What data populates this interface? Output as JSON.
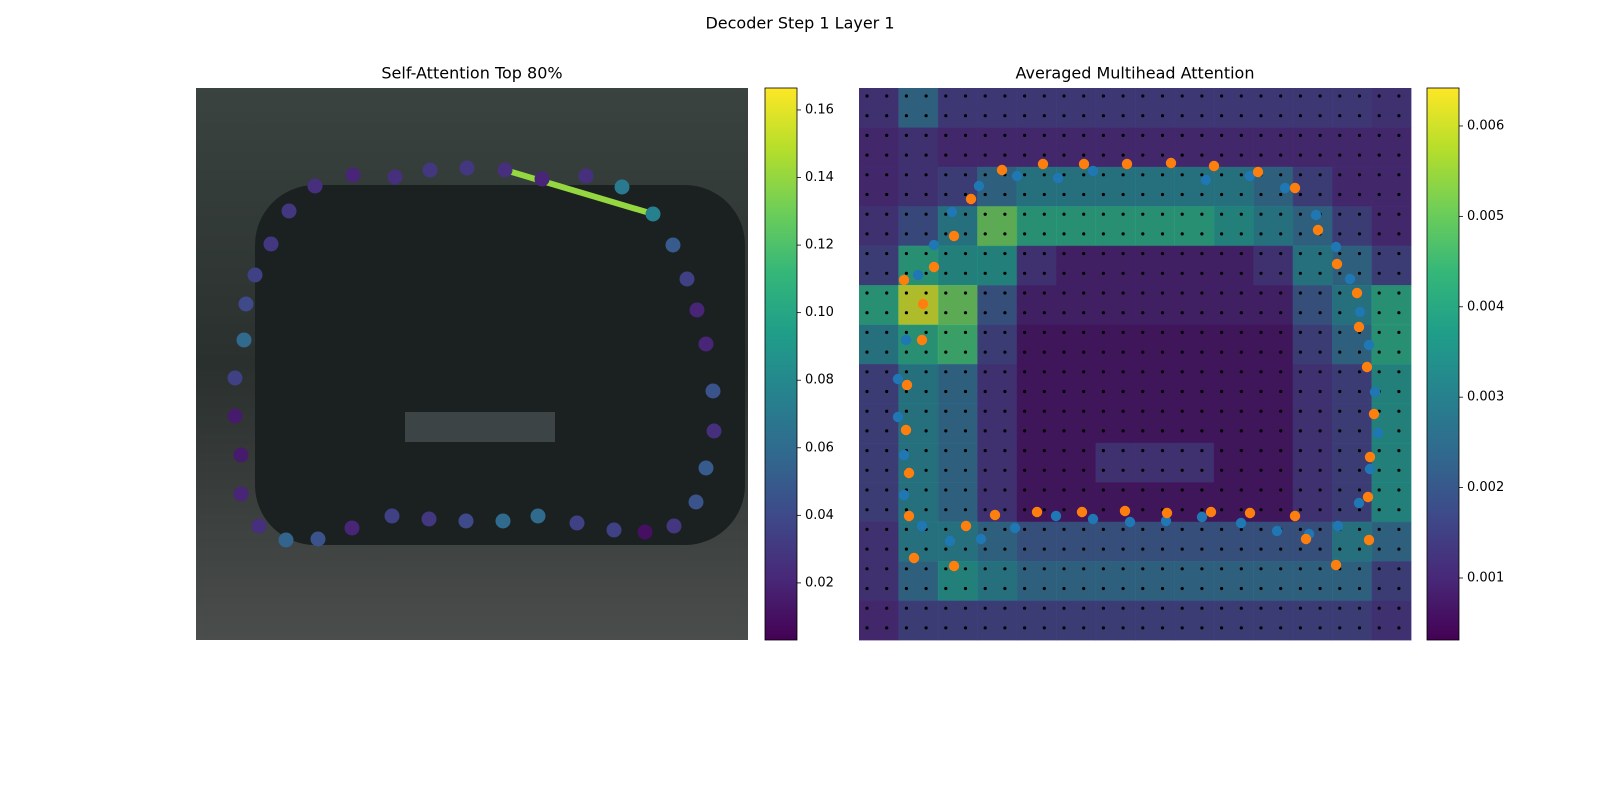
{
  "suptitle": "Decoder Step 1 Layer 1",
  "chart_data": [
    {
      "type": "scatter",
      "title": "Self-Attention Top 80%",
      "xlim": [
        0,
        552
      ],
      "ylim": [
        552,
        0
      ],
      "x": [
        157,
        199,
        234,
        271,
        309,
        346,
        390,
        426,
        457,
        477,
        491,
        501,
        510,
        517,
        518,
        510,
        500,
        478,
        449,
        418,
        381,
        342,
        307,
        270,
        233,
        196,
        156,
        122,
        90,
        63,
        45,
        45,
        39,
        39,
        48,
        50,
        59,
        75,
        93,
        119
      ],
      "y": [
        87,
        89,
        82,
        80,
        82,
        91,
        88,
        99,
        126,
        157,
        191,
        222,
        256,
        303,
        343,
        380,
        414,
        438,
        444,
        442,
        435,
        428,
        433,
        433,
        431,
        428,
        440,
        451,
        452,
        438,
        406,
        367,
        328,
        290,
        252,
        216,
        187,
        156,
        123,
        98
      ],
      "values": [
        0.02,
        0.025,
        0.03,
        0.03,
        0.025,
        0.02,
        0.025,
        0.07,
        0.075,
        0.05,
        0.035,
        0.02,
        0.02,
        0.045,
        0.025,
        0.05,
        0.045,
        0.03,
        0.01,
        0.035,
        0.035,
        0.06,
        0.06,
        0.04,
        0.03,
        0.035,
        0.02,
        0.045,
        0.055,
        0.025,
        0.02,
        0.015,
        0.015,
        0.035,
        0.06,
        0.04,
        0.035,
        0.03,
        0.03,
        0.025
      ],
      "edges": [
        {
          "x": [
            309,
            457
          ],
          "y": [
            82,
            126
          ],
          "value": 0.14
        }
      ],
      "clim": [
        0.0031,
        0.1665
      ],
      "cticks": [
        0.02,
        0.04,
        0.06,
        0.08,
        {
          "value": 0.1,
          "label": "0.10"
        },
        0.12,
        0.14,
        0.16
      ]
    },
    {
      "type": "heatmap",
      "title": "Averaged Multihead Attention",
      "xlim": [
        0,
        552
      ],
      "ylim": [
        552,
        0
      ],
      "heatmap": [
        [
          0.0012,
          0.0025,
          0.0014,
          0.0014,
          0.0014,
          0.0014,
          0.0014,
          0.0014,
          0.0014,
          0.0014,
          0.0014,
          0.0014,
          0.0014,
          0.0012
        ],
        [
          0.001,
          0.0012,
          0.001,
          0.001,
          0.001,
          0.001,
          0.001,
          0.001,
          0.001,
          0.001,
          0.001,
          0.001,
          0.001,
          0.001
        ],
        [
          0.001,
          0.0012,
          0.0015,
          0.0025,
          0.003,
          0.003,
          0.003,
          0.003,
          0.003,
          0.003,
          0.0025,
          0.0015,
          0.001,
          0.001
        ],
        [
          0.0012,
          0.0018,
          0.003,
          0.005,
          0.004,
          0.004,
          0.004,
          0.004,
          0.004,
          0.0035,
          0.003,
          0.0025,
          0.0015,
          0.001
        ],
        [
          0.0015,
          0.004,
          0.0035,
          0.0035,
          0.0012,
          0.0008,
          0.0008,
          0.0008,
          0.0008,
          0.0008,
          0.0012,
          0.003,
          0.0025,
          0.0015
        ],
        [
          0.004,
          0.006,
          0.005,
          0.002,
          0.0008,
          0.0008,
          0.0008,
          0.0008,
          0.0008,
          0.0008,
          0.0008,
          0.002,
          0.003,
          0.004
        ],
        [
          0.003,
          0.004,
          0.0045,
          0.0015,
          0.0006,
          0.0006,
          0.0006,
          0.0006,
          0.0006,
          0.0006,
          0.0006,
          0.0015,
          0.0025,
          0.004
        ],
        [
          0.0015,
          0.003,
          0.0025,
          0.0012,
          0.0006,
          0.0006,
          0.0006,
          0.0006,
          0.0006,
          0.0006,
          0.0006,
          0.0012,
          0.0015,
          0.0035
        ],
        [
          0.0015,
          0.003,
          0.0025,
          0.0012,
          0.0006,
          0.0006,
          0.0006,
          0.0006,
          0.0006,
          0.0006,
          0.0006,
          0.0012,
          0.0015,
          0.0035
        ],
        [
          0.0015,
          0.003,
          0.0025,
          0.0012,
          0.0006,
          0.0006,
          0.0012,
          0.0012,
          0.0012,
          0.0006,
          0.0006,
          0.0012,
          0.0015,
          0.0035
        ],
        [
          0.0015,
          0.003,
          0.0025,
          0.0012,
          0.0006,
          0.0006,
          0.0006,
          0.0006,
          0.0006,
          0.0006,
          0.0006,
          0.0012,
          0.0015,
          0.0035
        ],
        [
          0.0012,
          0.003,
          0.003,
          0.0025,
          0.002,
          0.002,
          0.002,
          0.002,
          0.002,
          0.002,
          0.002,
          0.002,
          0.003,
          0.0025
        ],
        [
          0.0012,
          0.0025,
          0.0035,
          0.003,
          0.0025,
          0.0025,
          0.0025,
          0.0025,
          0.0025,
          0.0025,
          0.0025,
          0.0025,
          0.0025,
          0.0015
        ],
        [
          0.001,
          0.0015,
          0.0015,
          0.0015,
          0.0015,
          0.0015,
          0.0015,
          0.0015,
          0.0015,
          0.0015,
          0.0015,
          0.0015,
          0.0015,
          0.0012
        ]
      ],
      "series": [
        {
          "color": "#1f77b4",
          "x": [
            158,
            199,
            234,
            347,
            391,
            426,
            457,
            477,
            491,
            501,
            510,
            516,
            519,
            511,
            500,
            479,
            450,
            418,
            382,
            343,
            307,
            271,
            234,
            197,
            156,
            122,
            91,
            63,
            45,
            45,
            39,
            39,
            47,
            59,
            75,
            93,
            120
          ],
          "y": [
            88,
            90,
            83,
            92,
            88,
            100,
            127,
            159,
            191,
            224,
            257,
            304,
            345,
            381,
            415,
            438,
            446,
            443,
            435,
            429,
            433,
            434,
            431,
            428,
            440,
            451,
            453,
            438,
            407,
            367,
            329,
            291,
            252,
            187,
            157,
            124,
            98
          ]
        },
        {
          "color": "#ff7f0e",
          "x": [
            143,
            184,
            225,
            268,
            312,
            355,
            399,
            436,
            459,
            478,
            498,
            500,
            508,
            515,
            511,
            509,
            510,
            477,
            447,
            436,
            391,
            352,
            308,
            266,
            223,
            178,
            136,
            107,
            95,
            55,
            50,
            50,
            47,
            48,
            63,
            64,
            45,
            75,
            95,
            112
          ],
          "y": [
            82,
            76,
            76,
            76,
            75,
            78,
            84,
            100,
            142,
            176,
            205,
            239,
            279,
            326,
            369,
            409,
            452,
            477,
            451,
            428,
            425,
            424,
            425,
            423,
            424,
            424,
            427,
            438,
            478,
            470,
            428,
            385,
            342,
            297,
            252,
            216,
            192,
            179,
            148,
            111
          ]
        }
      ],
      "clim": [
        0.000314,
        0.00642
      ],
      "cticks": [
        0.001,
        0.002,
        0.003,
        0.004,
        0.005,
        0.006
      ]
    }
  ]
}
